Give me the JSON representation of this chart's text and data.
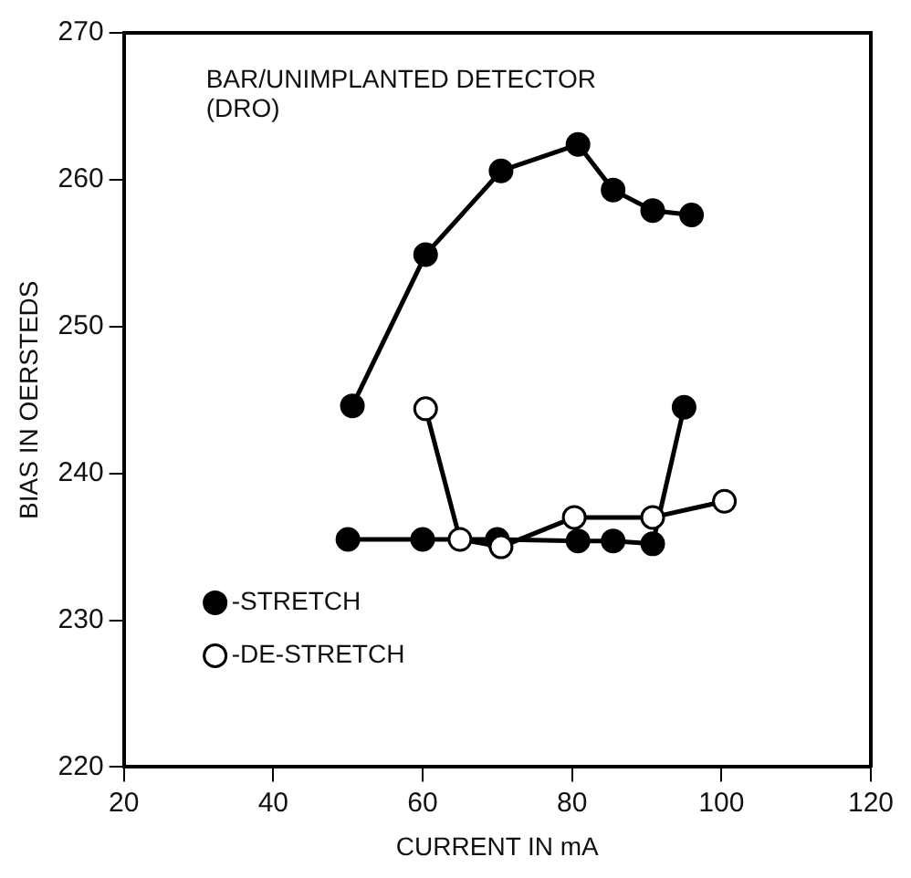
{
  "chart_data": {
    "type": "line",
    "title": "BAR/UNIMPLANTED DETECTOR\n(DRO)",
    "xlabel": "CURRENT IN mA",
    "ylabel": "BIAS IN OERSTEDS",
    "xlim": [
      20,
      120
    ],
    "xticks": [
      20,
      40,
      60,
      80,
      100,
      120
    ],
    "ylim": [
      220,
      270
    ],
    "yticks": [
      220,
      230,
      240,
      250,
      260,
      270
    ],
    "grid": false,
    "legend": "bottom left",
    "marker": "circle",
    "line_style": "solid",
    "series": [
      {
        "name": "-STRETCH",
        "color": "#000000",
        "x": [
          50.6,
          60.4,
          70.5,
          80.8,
          85.5,
          90.8,
          96,
          null,
          50,
          60,
          70,
          80.8,
          85.5,
          90.8,
          95
        ],
        "values": [
          244.6,
          254.9,
          260.6,
          262.4,
          259.3,
          257.9,
          257.6,
          null,
          235.5,
          235.5,
          235.5,
          235.4,
          235.4,
          235.2,
          244.5
        ]
      },
      {
        "name": "-DE-STRETCH",
        "color": "#ffffff",
        "x": [
          60.4,
          65,
          70.5,
          80.3,
          90.8,
          100.4
        ],
        "values": [
          244.4,
          235.5,
          235.0,
          237.0,
          237.0,
          238.1
        ]
      }
    ]
  }
}
